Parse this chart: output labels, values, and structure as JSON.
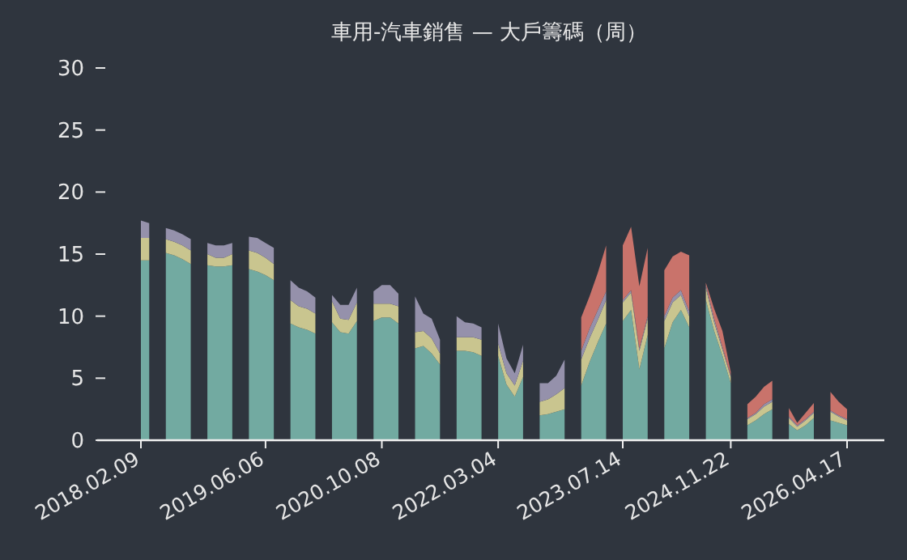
{
  "chart_data": {
    "type": "area",
    "stacked": true,
    "title": "車用-汽車銷售 — 大戶籌碼（周）",
    "categories": [
      "2018.02.09",
      null,
      null,
      null,
      null,
      null,
      null,
      null,
      null,
      null,
      null,
      null,
      null,
      null,
      null,
      "2019.06.06",
      null,
      null,
      null,
      null,
      null,
      null,
      null,
      null,
      null,
      null,
      null,
      null,
      null,
      "2020.10.08",
      null,
      null,
      null,
      null,
      null,
      null,
      null,
      null,
      null,
      null,
      null,
      null,
      null,
      "2022.03.04",
      null,
      null,
      null,
      null,
      null,
      null,
      null,
      null,
      null,
      null,
      null,
      null,
      null,
      null,
      "2023.07.14",
      null,
      null,
      null,
      null,
      null,
      null,
      null,
      null,
      null,
      null,
      null,
      null,
      "2024.11.22",
      null,
      null,
      null,
      null,
      null,
      null,
      null,
      null,
      null,
      null,
      null,
      null,
      null,
      "2026.04.17"
    ],
    "series": [
      {
        "color": "#72aaa1",
        "values": [
          14.5,
          14.5,
          null,
          15.1,
          14.9,
          14.6,
          14.2,
          null,
          14.1,
          14.0,
          14.0,
          14.1,
          null,
          13.8,
          13.6,
          13.3,
          12.9,
          null,
          9.4,
          9.1,
          8.9,
          8.6,
          null,
          9.5,
          8.7,
          8.6,
          9.6,
          null,
          9.6,
          9.9,
          9.9,
          9.4,
          null,
          7.4,
          7.6,
          7.0,
          6.1,
          null,
          7.2,
          7.2,
          7.1,
          6.8,
          null,
          6.8,
          4.5,
          3.5,
          5.1,
          null,
          2.0,
          2.1,
          2.3,
          2.5,
          null,
          4.4,
          6.3,
          7.9,
          9.4,
          null,
          9.6,
          10.5,
          5.7,
          8.5,
          null,
          7.4,
          9.5,
          10.5,
          9.1,
          null,
          11.3,
          8.8,
          6.8,
          4.6,
          null,
          1.2,
          1.6,
          2.1,
          2.5,
          null,
          1.3,
          0.8,
          1.2,
          1.8,
          null,
          1.6,
          1.4,
          1.2
        ]
      },
      {
        "color": "#c9c58f",
        "values": [
          1.8,
          1.8,
          null,
          1.1,
          1.1,
          1.1,
          1.1,
          null,
          0.9,
          0.7,
          0.7,
          0.9,
          null,
          1.5,
          1.5,
          1.4,
          1.3,
          null,
          1.9,
          1.7,
          1.7,
          1.6,
          null,
          1.7,
          1.1,
          1.1,
          1.5,
          null,
          1.4,
          1.1,
          1.1,
          1.4,
          null,
          1.3,
          1.2,
          1.2,
          0.9,
          null,
          1.1,
          1.1,
          1.2,
          1.3,
          null,
          1.0,
          0.9,
          0.9,
          1.3,
          null,
          1.1,
          1.2,
          1.4,
          1.7,
          null,
          2.1,
          1.9,
          1.8,
          1.9,
          null,
          1.5,
          1.4,
          1.5,
          1.3,
          null,
          2.2,
          1.6,
          1.2,
          0.9,
          null,
          1.0,
          0.7,
          0.5,
          0.5,
          null,
          0.5,
          0.5,
          0.6,
          0.6,
          null,
          0.5,
          0.3,
          0.4,
          0.4,
          null,
          0.7,
          0.5,
          0.4
        ]
      },
      {
        "color": "#9591ab",
        "values": [
          1.4,
          1.2,
          null,
          0.9,
          0.9,
          0.9,
          0.9,
          null,
          0.9,
          1.0,
          1.0,
          0.9,
          null,
          1.1,
          1.2,
          1.2,
          1.3,
          null,
          1.6,
          1.5,
          1.4,
          1.3,
          null,
          0.5,
          1.1,
          1.2,
          1.2,
          null,
          1.0,
          1.5,
          1.5,
          1.0,
          null,
          2.9,
          1.4,
          1.6,
          1.1,
          null,
          1.7,
          1.2,
          1.1,
          1.0,
          null,
          1.6,
          1.2,
          1.0,
          1.3,
          null,
          1.5,
          1.3,
          1.5,
          2.3,
          null,
          0.7,
          0.8,
          0.8,
          0.7,
          null,
          0.2,
          0.2,
          0.2,
          0.2,
          null,
          0.4,
          0.4,
          0.4,
          0.4,
          null,
          0.2,
          0.3,
          0.2,
          0.1,
          null,
          0.1,
          0.1,
          0.2,
          0.2,
          null,
          0.1,
          0.1,
          0.1,
          0.1,
          null,
          0.1,
          0.1,
          0.1
        ]
      },
      {
        "color": "#c9736b",
        "values": [
          null,
          null,
          null,
          null,
          null,
          null,
          null,
          null,
          null,
          null,
          null,
          null,
          null,
          null,
          null,
          null,
          null,
          null,
          null,
          null,
          null,
          null,
          null,
          null,
          null,
          null,
          null,
          null,
          null,
          null,
          null,
          null,
          null,
          null,
          null,
          null,
          null,
          null,
          null,
          null,
          null,
          null,
          null,
          null,
          null,
          null,
          null,
          null,
          null,
          null,
          null,
          null,
          null,
          2.7,
          2.6,
          3.0,
          3.7,
          null,
          4.4,
          5.1,
          5.0,
          5.5,
          null,
          3.7,
          3.3,
          3.1,
          4.5,
          null,
          0.2,
          0.8,
          1.3,
          0.3,
          null,
          1.1,
          1.3,
          1.4,
          1.5,
          null,
          0.7,
          0.2,
          0.5,
          0.7,
          null,
          1.5,
          1.1,
          0.8
        ]
      }
    ],
    "ylim": [
      0,
      30
    ],
    "yticks": [
      0,
      5,
      10,
      15,
      20,
      25,
      30
    ]
  }
}
